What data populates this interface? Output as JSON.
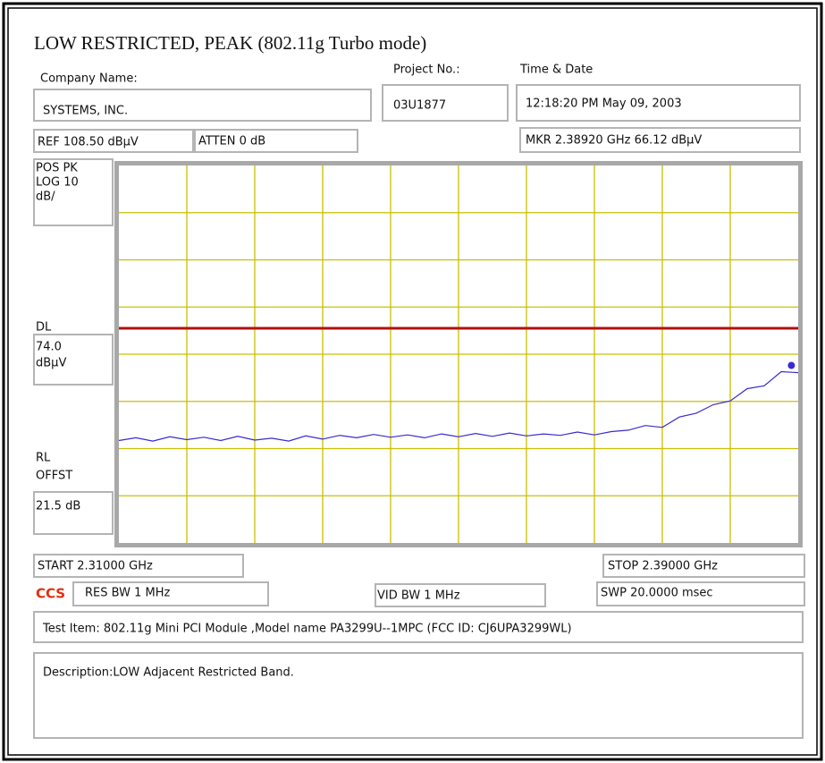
{
  "header": {
    "title": "LOW RESTRICTED, PEAK (802.11g Turbo mode)",
    "company_label": "Company Name:",
    "company": "SYSTEMS, INC.",
    "project_label": "Project No.:",
    "project": "03U1877",
    "time_label": "Time & Date",
    "time": "12:18:20 PM May 09, 2003"
  },
  "settings": {
    "ref": "REF 108.50 dBµV",
    "atten": "ATTEN 0 dB",
    "mkr": "MKR 2.38920 GHz   66.12 dBµV",
    "side": [
      "POS PK",
      "LOG 10",
      "dB/"
    ],
    "dl_label": "DL",
    "dl_value": [
      "74.0",
      "dBµV"
    ],
    "rl_label": [
      "RL",
      "OFFST"
    ],
    "rl_value": "21.5 dB",
    "start": "START 2.31000 GHz",
    "stop": "STOP 2.39000 GHz",
    "brand": "CCS",
    "res_bw": "RES BW 1 MHz",
    "vid_bw": "VID BW 1 MHz",
    "sweep": "SWP  20.0000 msec",
    "test_item": "Test Item: 802.11g Mini PCI Module ,Model name PA3299U--1MPC (FCC ID: CJ6UPA3299WL)",
    "description": "Description:LOW Adjacent Restricted Band."
  },
  "chart_data": {
    "type": "line",
    "xlim": [
      2.31,
      2.39
    ],
    "ylim": [
      28.5,
      108.5
    ],
    "x": [
      2.31,
      2.312,
      2.314,
      2.316,
      2.318,
      2.32,
      2.322,
      2.324,
      2.326,
      2.328,
      2.33,
      2.332,
      2.334,
      2.336,
      2.338,
      2.34,
      2.342,
      2.344,
      2.346,
      2.348,
      2.35,
      2.352,
      2.354,
      2.356,
      2.358,
      2.36,
      2.362,
      2.364,
      2.366,
      2.368,
      2.37,
      2.372,
      2.374,
      2.376,
      2.378,
      2.38,
      2.382,
      2.384,
      2.386,
      2.388,
      2.39
    ],
    "series": [
      {
        "color": "#3a2ad0",
        "values": [
          50.2,
          50.8,
          50.1,
          51.0,
          50.4,
          50.9,
          50.2,
          51.1,
          50.3,
          50.7,
          50.1,
          51.2,
          50.5,
          51.3,
          50.8,
          51.5,
          50.9,
          51.4,
          50.8,
          51.6,
          51.0,
          51.7,
          51.1,
          51.8,
          51.2,
          51.6,
          51.3,
          52.0,
          51.4,
          52.1,
          52.4,
          53.4,
          53.0,
          55.2,
          56.0,
          57.8,
          58.6,
          61.2,
          61.8,
          64.8,
          64.6
        ]
      }
    ],
    "display_line": 74.0,
    "display_line_color": "#b01010",
    "marker": {
      "x": 2.3892,
      "y": 66.12
    },
    "grid_color": "#c8c000"
  }
}
